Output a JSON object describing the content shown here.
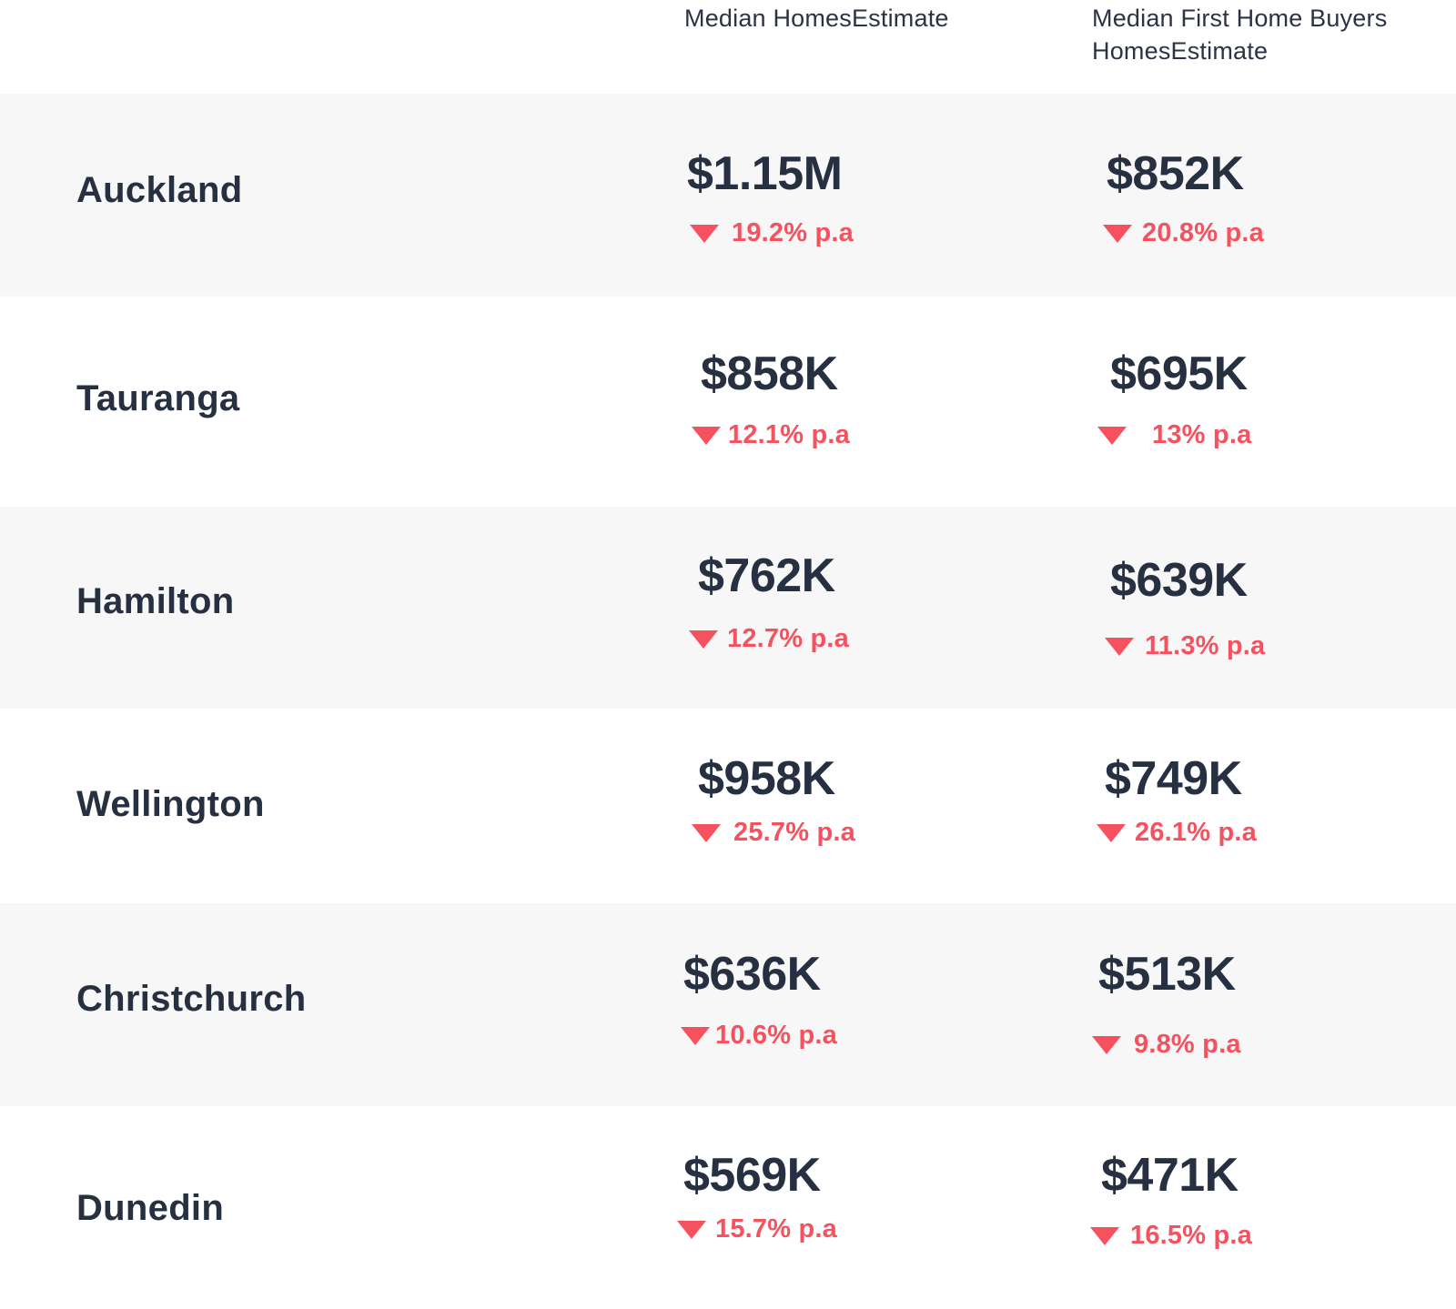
{
  "header": {
    "col1_label": "Median HomesEstimate",
    "col2_label": "Median First Home Buyers HomesEstimate"
  },
  "colors": {
    "text": "#263041",
    "decline": "#f5515f",
    "row_shade": "#f7f7f7"
  },
  "rows": [
    {
      "city": "Auckland",
      "median": "$1.15M",
      "median_change": "19.2% p.a",
      "first_home": "$852K",
      "first_home_change": "20.8% p.a",
      "trend_icon": "down-triangle-icon"
    },
    {
      "city": "Tauranga",
      "median": "$858K",
      "median_change": "12.1% p.a",
      "first_home": "$695K",
      "first_home_change": "13% p.a",
      "trend_icon": "down-triangle-icon"
    },
    {
      "city": "Hamilton",
      "median": "$762K",
      "median_change": "12.7% p.a",
      "first_home": "$639K",
      "first_home_change": "11.3% p.a",
      "trend_icon": "down-triangle-icon"
    },
    {
      "city": "Wellington",
      "median": "$958K",
      "median_change": "25.7% p.a",
      "first_home": "$749K",
      "first_home_change": "26.1% p.a",
      "trend_icon": "down-triangle-icon"
    },
    {
      "city": "Christchurch",
      "median": "$636K",
      "median_change": "10.6% p.a",
      "first_home": "$513K",
      "first_home_change": "9.8% p.a",
      "trend_icon": "down-triangle-icon"
    },
    {
      "city": "Dunedin",
      "median": "$569K",
      "median_change": "15.7% p.a",
      "first_home": "$471K",
      "first_home_change": "16.5% p.a",
      "trend_icon": "down-triangle-icon"
    }
  ]
}
